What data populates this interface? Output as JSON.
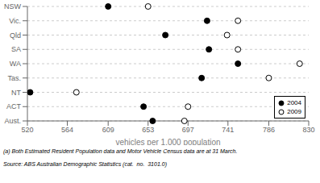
{
  "chart_data": {
    "type": "dot",
    "orientation": "horizontal",
    "categories": [
      "NSW",
      "Vic.",
      "Qld",
      "SA",
      "WA",
      "Tas.",
      "NT",
      "ACT",
      "Aust."
    ],
    "series": [
      {
        "name": "2004",
        "color": "#000000",
        "marker": "filled_circle",
        "values": [
          609,
          718,
          672,
          720,
          752,
          712,
          523,
          648,
          658
        ]
      },
      {
        "name": "2009",
        "color": "#000000",
        "marker": "open_circle",
        "values": [
          653,
          752,
          740,
          752,
          820,
          786,
          574,
          697,
          693
        ]
      }
    ],
    "xlabel": "vehicles per 1,000 population",
    "xlim": [
      520,
      830
    ],
    "xticks": [
      520,
      564,
      609,
      653,
      697,
      741,
      786,
      830
    ],
    "grid": true,
    "legend": "lower right",
    "annotations": [
      "(a) Both Estimated Resident Population data and Motor Vehicle Census data are at 31 March.",
      "Source: ABS Australian Demographic Statistics (cat.  no.  3101.0)"
    ]
  }
}
